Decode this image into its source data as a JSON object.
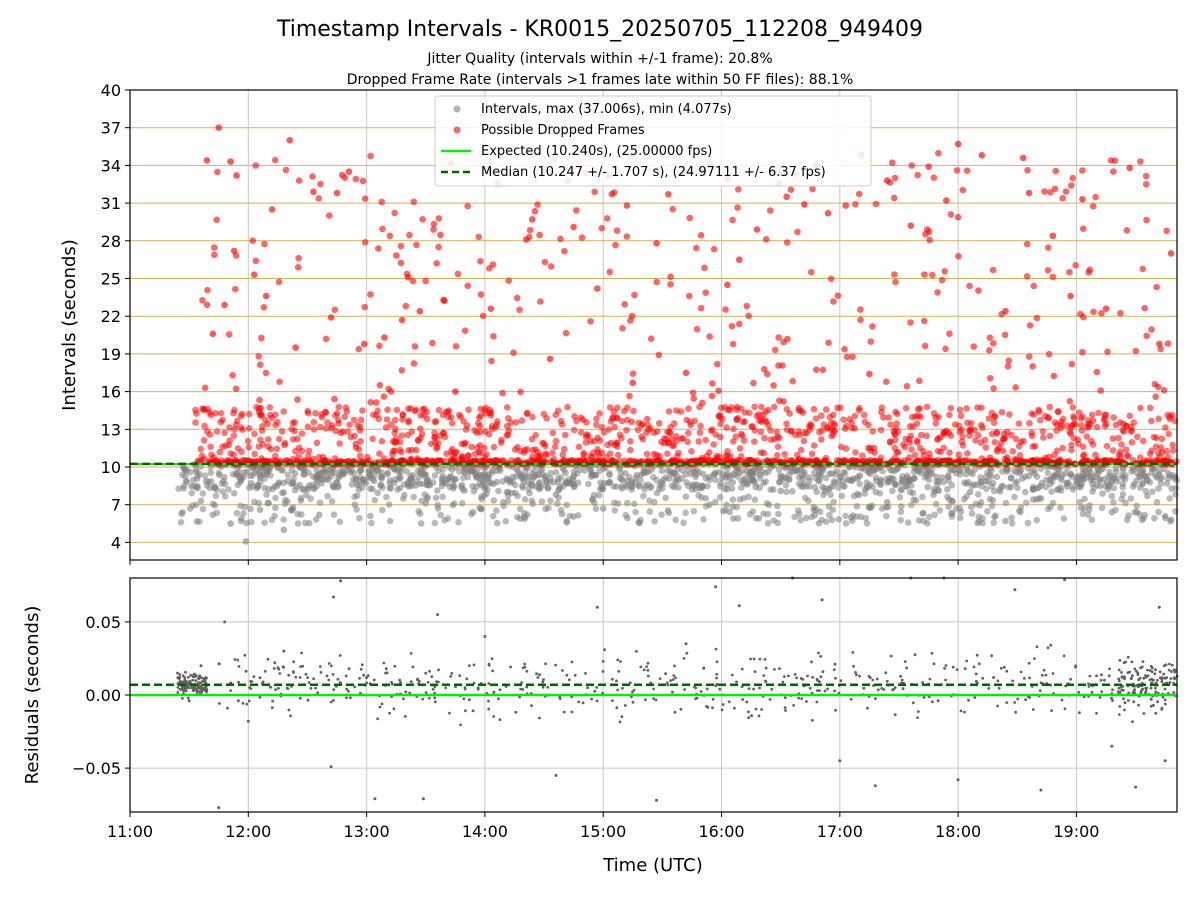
{
  "chart_data": {
    "title": "Timestamp Intervals - KR0015_20250705_112208_949409",
    "subtitles": [
      "Jitter Quality (intervals within +/-1 frame): 20.8%",
      "Dropped Frame Rate (intervals >1 frames late within 50 FF files): 88.1%"
    ],
    "xlabel": "Time (UTC)",
    "x_ticks": [
      "11:00",
      "12:00",
      "13:00",
      "14:00",
      "15:00",
      "16:00",
      "17:00",
      "18:00",
      "19:00"
    ],
    "x_range_hours": [
      11.0,
      19.85
    ],
    "colors": {
      "intervals": "#808080",
      "dropped": "#ff0000",
      "expected": "#00ee00",
      "median": "#006400",
      "hgrid_top": "#d2b45a",
      "grid": "#c8c8c8"
    },
    "panels": [
      {
        "type": "scatter",
        "ylabel": "Intervals (seconds)",
        "ylim": [
          2.6,
          40
        ],
        "yticks": [
          4,
          7,
          10,
          13,
          16,
          19,
          22,
          25,
          28,
          31,
          34,
          37,
          40
        ],
        "horizontal_grid": true,
        "vertical_grid": true,
        "expected_value": 10.24,
        "median_value": 10.247,
        "legend": {
          "placement": "top-center",
          "entries": [
            {
              "label": "Intervals, max (37.006s), min (4.077s)",
              "marker": "gray-dot"
            },
            {
              "label": "Possible Dropped Frames",
              "marker": "red-dot"
            },
            {
              "label": "Expected (10.240s), (25.00000 fps)",
              "marker": "green-line"
            },
            {
              "label": "Median (10.247 +/- 1.707 s), (24.97111 +/- 6.37 fps)",
              "marker": "dark-green-dashed"
            }
          ]
        },
        "series": [
          {
            "name": "Intervals, max (37.006s), min (4.077s)",
            "kind": "normal-intervals",
            "points": [
              [
                11.55,
                10.24
              ],
              [
                11.6,
                7.3
              ],
              [
                11.7,
                6.2
              ],
              [
                11.85,
                5.5
              ],
              [
                11.98,
                4.08
              ],
              [
                12.1,
                6.6
              ],
              [
                12.3,
                5.0
              ],
              [
                12.6,
                6.2
              ],
              [
                12.9,
                7.0
              ],
              [
                13.2,
                8.3
              ],
              [
                13.5,
                7.1
              ],
              [
                13.9,
                6.4
              ],
              [
                14.1,
                8.8
              ],
              [
                14.3,
                5.9
              ],
              [
                14.6,
                7.8
              ],
              [
                15.0,
                6.7
              ],
              [
                15.3,
                5.6
              ],
              [
                15.6,
                8.4
              ],
              [
                15.9,
                7.0
              ],
              [
                16.1,
                5.9
              ],
              [
                16.5,
                8.1
              ],
              [
                16.8,
                6.6
              ],
              [
                17.1,
                8.9
              ],
              [
                17.4,
                7.2
              ],
              [
                17.7,
                6.3
              ],
              [
                18.1,
                8.0
              ],
              [
                18.4,
                5.7
              ],
              [
                18.7,
                7.5
              ],
              [
                19.0,
                8.9
              ],
              [
                19.3,
                6.4
              ],
              [
                19.6,
                7.7
              ],
              [
                19.8,
                5.8
              ]
            ]
          },
          {
            "name": "Possible Dropped Frames",
            "kind": "dropped",
            "points": [
              [
                11.65,
                34.4
              ],
              [
                11.75,
                37.0
              ],
              [
                11.85,
                34.3
              ],
              [
                11.9,
                33.2
              ],
              [
                11.88,
                27.2
              ],
              [
                11.8,
                22.9
              ],
              [
                11.7,
                20.6
              ],
              [
                12.05,
                25.3
              ],
              [
                12.15,
                23.6
              ],
              [
                12.2,
                30.5
              ],
              [
                12.35,
                36.0
              ],
              [
                12.4,
                19.5
              ],
              [
                12.55,
                31.9
              ],
              [
                12.7,
                21.9
              ],
              [
                12.75,
                31.8
              ],
              [
                12.85,
                33.5
              ],
              [
                12.98,
                19.8
              ],
              [
                13.15,
                20.3
              ],
              [
                13.3,
                21.7
              ],
              [
                13.35,
                25.1
              ],
              [
                13.45,
                22.4
              ],
              [
                13.65,
                23.3
              ],
              [
                13.75,
                16.0
              ],
              [
                14.05,
                22.6
              ],
              [
                14.35,
                28.1
              ],
              [
                14.4,
                29.7
              ],
              [
                14.55,
                18.6
              ],
              [
                14.75,
                29.1
              ],
              [
                14.95,
                24.2
              ],
              [
                15.05,
                33.2
              ],
              [
                15.2,
                30.8
              ],
              [
                15.25,
                16.7
              ],
              [
                15.45,
                27.8
              ],
              [
                15.55,
                31.7
              ],
              [
                15.7,
                17.5
              ],
              [
                15.9,
                34.1
              ],
              [
                16.05,
                24.5
              ],
              [
                16.15,
                26.5
              ],
              [
                16.3,
                28.9
              ],
              [
                16.55,
                31.5
              ],
              [
                16.7,
                30.9
              ],
              [
                16.8,
                34.0
              ],
              [
                16.9,
                30.2
              ],
              [
                17.05,
                30.8
              ],
              [
                17.25,
                17.4
              ],
              [
                17.4,
                32.8
              ],
              [
                17.6,
                29.2
              ],
              [
                17.75,
                33.9
              ],
              [
                17.9,
                31.2
              ],
              [
                18.0,
                35.7
              ],
              [
                18.2,
                34.8
              ],
              [
                18.4,
                22.4
              ],
              [
                18.55,
                34.6
              ],
              [
                18.6,
                31.8
              ],
              [
                18.8,
                28.4
              ],
              [
                18.95,
                23.6
              ],
              [
                19.05,
                31.3
              ],
              [
                19.25,
                22.6
              ],
              [
                19.45,
                33.8
              ],
              [
                19.7,
                19.8
              ],
              [
                19.8,
                27.0
              ]
            ]
          },
          {
            "name": "Possible Dropped Frames",
            "kind": "dropped-band",
            "y_range": [
              10.24,
              14.8
            ]
          },
          {
            "name": "Intervals, max (37.006s), min (4.077s)",
            "kind": "normal-band",
            "y_range": [
              5.0,
              10.24
            ]
          }
        ]
      },
      {
        "type": "scatter",
        "ylabel": "Residuals (seconds)",
        "ylim": [
          -0.08,
          0.08
        ],
        "yticks": [
          -0.05,
          0.0,
          0.05
        ],
        "ytick_labels": [
          "−0.05",
          "0.00",
          "0.05"
        ],
        "expected_value": 0.0,
        "median_value": 0.007,
        "series": [
          {
            "name": "Residuals",
            "kind": "residuals",
            "points": [
              [
                11.42,
                0.012
              ],
              [
                11.5,
                -0.004
              ],
              [
                11.6,
                0.02
              ],
              [
                11.75,
                -0.077
              ],
              [
                11.8,
                0.05
              ],
              [
                12.0,
                -0.018
              ],
              [
                12.3,
                0.03
              ],
              [
                12.72,
                0.067
              ],
              [
                12.78,
                0.078
              ],
              [
                12.7,
                -0.049
              ],
              [
                13.07,
                -0.071
              ],
              [
                13.48,
                -0.071
              ],
              [
                13.6,
                0.055
              ],
              [
                14.0,
                0.04
              ],
              [
                14.6,
                -0.055
              ],
              [
                14.95,
                0.06
              ],
              [
                15.45,
                -0.072
              ],
              [
                15.7,
                0.035
              ],
              [
                15.95,
                0.074
              ],
              [
                16.15,
                0.061
              ],
              [
                16.6,
                0.08
              ],
              [
                16.85,
                0.065
              ],
              [
                17.0,
                -0.045
              ],
              [
                17.3,
                -0.062
              ],
              [
                17.6,
                0.08
              ],
              [
                17.88,
                0.08
              ],
              [
                18.0,
                -0.058
              ],
              [
                18.3,
                0.012
              ],
              [
                18.48,
                0.072
              ],
              [
                18.7,
                -0.065
              ],
              [
                18.9,
                0.079
              ],
              [
                19.3,
                -0.035
              ],
              [
                19.5,
                -0.063
              ],
              [
                19.7,
                0.06
              ],
              [
                19.75,
                -0.045
              ]
            ]
          }
        ]
      }
    ]
  }
}
